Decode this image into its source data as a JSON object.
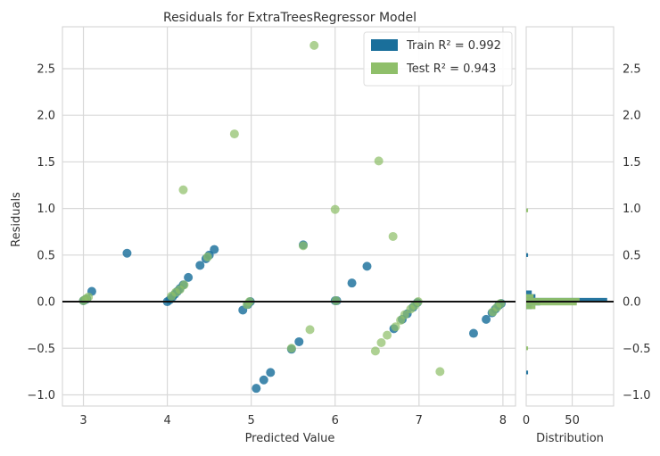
{
  "chart_data": [
    {
      "type": "scatter",
      "title": "Residuals for ExtraTreesRegressor Model",
      "xlabel": "Predicted Value",
      "ylabel": "Residuals",
      "xlim": [
        2.75,
        8.15
      ],
      "ylim": [
        -1.12,
        2.95
      ],
      "xticks": [
        3,
        4,
        5,
        6,
        7,
        8
      ],
      "yticks": [
        -1.0,
        -0.5,
        0.0,
        0.5,
        1.0,
        1.5,
        2.0,
        2.5
      ],
      "ytick_labels": [
        "−1.0",
        "−0.5",
        "0.0",
        "0.5",
        "1.0",
        "1.5",
        "2.0",
        "2.5"
      ],
      "grid": true,
      "legend_position": "top-right",
      "zero_line": 0,
      "series": [
        {
          "name": "Train R^2 = 0.992",
          "color": "#1a6f9b",
          "points": [
            {
              "x": 3.0,
              "y": 0.01
            },
            {
              "x": 3.02,
              "y": 0.02
            },
            {
              "x": 3.04,
              "y": 0.03
            },
            {
              "x": 3.1,
              "y": 0.11
            },
            {
              "x": 3.52,
              "y": 0.52
            },
            {
              "x": 4.0,
              "y": 0.0
            },
            {
              "x": 4.03,
              "y": 0.02
            },
            {
              "x": 4.06,
              "y": 0.05
            },
            {
              "x": 4.09,
              "y": 0.08
            },
            {
              "x": 4.12,
              "y": 0.11
            },
            {
              "x": 4.15,
              "y": 0.14
            },
            {
              "x": 4.19,
              "y": 0.18
            },
            {
              "x": 4.25,
              "y": 0.26
            },
            {
              "x": 4.39,
              "y": 0.39
            },
            {
              "x": 4.46,
              "y": 0.46
            },
            {
              "x": 4.5,
              "y": 0.5
            },
            {
              "x": 4.56,
              "y": 0.56
            },
            {
              "x": 4.9,
              "y": -0.09
            },
            {
              "x": 4.96,
              "y": -0.03
            },
            {
              "x": 4.99,
              "y": 0.0
            },
            {
              "x": 5.06,
              "y": -0.93
            },
            {
              "x": 5.15,
              "y": -0.84
            },
            {
              "x": 5.23,
              "y": -0.76
            },
            {
              "x": 5.48,
              "y": -0.51
            },
            {
              "x": 5.57,
              "y": -0.43
            },
            {
              "x": 5.62,
              "y": 0.61
            },
            {
              "x": 6.0,
              "y": 0.01
            },
            {
              "x": 6.02,
              "y": 0.01
            },
            {
              "x": 6.2,
              "y": 0.2
            },
            {
              "x": 6.38,
              "y": 0.38
            },
            {
              "x": 6.7,
              "y": -0.29
            },
            {
              "x": 6.8,
              "y": -0.19
            },
            {
              "x": 6.86,
              "y": -0.13
            },
            {
              "x": 6.93,
              "y": -0.06
            },
            {
              "x": 6.98,
              "y": -0.01
            },
            {
              "x": 7.65,
              "y": -0.34
            },
            {
              "x": 7.8,
              "y": -0.19
            },
            {
              "x": 7.87,
              "y": -0.12
            },
            {
              "x": 7.91,
              "y": -0.08
            },
            {
              "x": 7.95,
              "y": -0.04
            },
            {
              "x": 7.98,
              "y": -0.02
            }
          ]
        },
        {
          "name": "Test R^2 = 0.943",
          "color": "#8fbf6a",
          "points": [
            {
              "x": 3.0,
              "y": 0.01
            },
            {
              "x": 3.03,
              "y": 0.03
            },
            {
              "x": 3.06,
              "y": 0.05
            },
            {
              "x": 4.05,
              "y": 0.06
            },
            {
              "x": 4.1,
              "y": 0.1
            },
            {
              "x": 4.15,
              "y": 0.13
            },
            {
              "x": 4.2,
              "y": 0.18
            },
            {
              "x": 4.19,
              "y": 1.2
            },
            {
              "x": 4.48,
              "y": 0.48
            },
            {
              "x": 4.8,
              "y": 1.8
            },
            {
              "x": 4.95,
              "y": -0.03
            },
            {
              "x": 4.98,
              "y": 0.0
            },
            {
              "x": 5.48,
              "y": -0.5
            },
            {
              "x": 5.7,
              "y": -0.3
            },
            {
              "x": 5.62,
              "y": 0.6
            },
            {
              "x": 5.75,
              "y": 2.75
            },
            {
              "x": 6.0,
              "y": 0.99
            },
            {
              "x": 6.01,
              "y": 0.01
            },
            {
              "x": 6.52,
              "y": 1.51
            },
            {
              "x": 6.55,
              "y": -0.44
            },
            {
              "x": 6.48,
              "y": -0.53
            },
            {
              "x": 6.62,
              "y": -0.36
            },
            {
              "x": 6.69,
              "y": 0.7
            },
            {
              "x": 6.72,
              "y": -0.27
            },
            {
              "x": 6.78,
              "y": -0.2
            },
            {
              "x": 6.83,
              "y": -0.14
            },
            {
              "x": 6.9,
              "y": -0.08
            },
            {
              "x": 6.95,
              "y": -0.04
            },
            {
              "x": 6.99,
              "y": 0.0
            },
            {
              "x": 7.25,
              "y": -0.75
            },
            {
              "x": 7.88,
              "y": -0.11
            },
            {
              "x": 7.93,
              "y": -0.06
            },
            {
              "x": 7.97,
              "y": -0.02
            }
          ]
        }
      ]
    },
    {
      "type": "histogram",
      "orientation": "horizontal",
      "xlabel": "Distribution",
      "xticks": [
        0,
        50
      ],
      "xlim": [
        0,
        95
      ],
      "series": [
        {
          "name": "Train",
          "color": "#1a6f9b",
          "bins": [
            {
              "y0": -0.04,
              "y1": 0.0,
              "count": 15
            },
            {
              "y0": 0.0,
              "y1": 0.04,
              "count": 88
            },
            {
              "y0": 0.04,
              "y1": 0.08,
              "count": 10
            },
            {
              "y0": 0.08,
              "y1": 0.12,
              "count": 6
            },
            {
              "y0": -0.08,
              "y1": -0.04,
              "count": 6
            },
            {
              "y0": 0.48,
              "y1": 0.52,
              "count": 2
            },
            {
              "y0": -0.78,
              "y1": -0.74,
              "count": 2
            }
          ]
        },
        {
          "name": "Test",
          "color": "#8fbf6a",
          "bins": [
            {
              "y0": -0.04,
              "y1": 0.0,
              "count": 55
            },
            {
              "y0": 0.0,
              "y1": 0.04,
              "count": 58
            },
            {
              "y0": -0.08,
              "y1": -0.04,
              "count": 10
            },
            {
              "y0": 0.04,
              "y1": 0.08,
              "count": 8
            },
            {
              "y0": 0.96,
              "y1": 1.0,
              "count": 2
            },
            {
              "y0": -0.52,
              "y1": -0.48,
              "count": 2
            }
          ]
        }
      ]
    }
  ],
  "right_axis_tick_labels": [
    "−1.0",
    "−0.5",
    "0.0",
    "0.5",
    "1.0",
    "1.5",
    "2.0",
    "2.5"
  ],
  "legend": [
    {
      "label": "Train R² = 0.992",
      "color": "#1a6f9b"
    },
    {
      "label": "Test R² = 0.943",
      "color": "#8fbf6a"
    }
  ]
}
